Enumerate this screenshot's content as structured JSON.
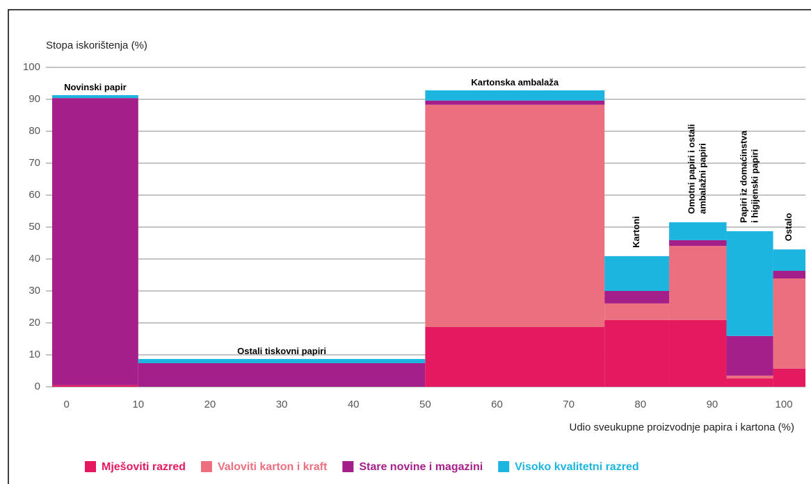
{
  "chart_data": {
    "type": "variable-width-stacked-bar",
    "y_label": "Stopa iskorištenja (%)",
    "x_label": "Udio sveukupne proizvodnje papira i kartona (%)",
    "categories": [
      [
        "Novinski papir"
      ],
      [
        "Ostali tiskovni papiri"
      ],
      [
        "Kartonska ambalaža"
      ],
      [
        "Kartoni"
      ],
      [
        "Omotni papiri i ostali",
        "ambalažni papiri"
      ],
      [
        "Papiri iz domaćinstva",
        "i higijenski papiri"
      ],
      [
        "Ostalo"
      ]
    ],
    "x_edges": [
      -2,
      10,
      50,
      75,
      84,
      92,
      98.5,
      103
    ],
    "series": [
      {
        "name": "Mješoviti razred",
        "color": "#e5195f",
        "values": [
          0.5,
          0,
          18.7,
          20.9,
          20.9,
          2.6,
          5.7
        ]
      },
      {
        "name": "Valoviti karton i kraft",
        "color": "#ec6f80",
        "values": [
          0,
          0,
          69.6,
          5.2,
          23.2,
          0.9,
          28.2
        ]
      },
      {
        "name": "Stare novine i magazini",
        "color": "#a51f8a",
        "values": [
          89.9,
          7.4,
          1.3,
          3.9,
          1.8,
          12.4,
          2.4
        ]
      },
      {
        "name": "Visoko kvalitetni razred",
        "color": "#1cb5e0",
        "values": [
          0.9,
          1.3,
          3.2,
          10.9,
          5.6,
          32.8,
          6.7
        ]
      }
    ],
    "xlim": [
      -2,
      103
    ],
    "xticks": [
      0,
      10,
      20,
      30,
      40,
      50,
      60,
      70,
      80,
      90,
      100
    ],
    "ylim": [
      0,
      100
    ],
    "yticks": [
      0,
      10,
      20,
      30,
      40,
      50,
      60,
      70,
      80,
      90,
      100
    ],
    "grid": true
  }
}
